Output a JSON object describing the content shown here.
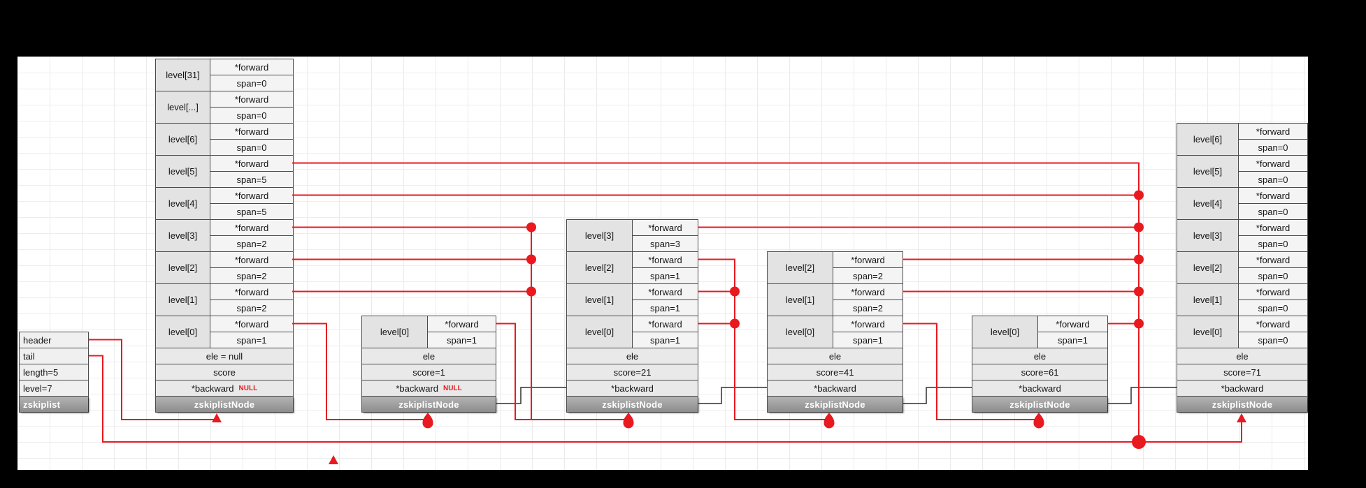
{
  "colors": {
    "accent_red": "#e8191f",
    "backward_line": "#2f2f2f",
    "title_bar_gray": "#9a9a9a",
    "cell_gray": "#e3e3e3"
  },
  "zskiplist_struct": {
    "title": "zskiplist",
    "fields": [
      "header",
      "tail",
      "length=5",
      "level=7"
    ]
  },
  "nodes": [
    {
      "name": "header-node",
      "levels": [
        {
          "label": "level[31]",
          "forward": "*forward",
          "span": "span=0"
        },
        {
          "label": "level[...]",
          "forward": "*forward",
          "span": "span=0"
        },
        {
          "label": "level[6]",
          "forward": "*forward",
          "span": "span=0"
        },
        {
          "label": "level[5]",
          "forward": "*forward",
          "span": "span=5"
        },
        {
          "label": "level[4]",
          "forward": "*forward",
          "span": "span=5"
        },
        {
          "label": "level[3]",
          "forward": "*forward",
          "span": "span=2"
        },
        {
          "label": "level[2]",
          "forward": "*forward",
          "span": "span=2"
        },
        {
          "label": "level[1]",
          "forward": "*forward",
          "span": "span=2"
        },
        {
          "label": "level[0]",
          "forward": "*forward",
          "span": "span=1"
        }
      ],
      "ele": "ele = null",
      "score": "score",
      "backward": "*backward",
      "backward_null": "NULL",
      "title": "zskiplistNode"
    },
    {
      "name": "node-score-1",
      "levels": [
        {
          "label": "level[0]",
          "forward": "*forward",
          "span": "span=1"
        }
      ],
      "ele": "ele",
      "score": "score=1",
      "backward": "*backward",
      "backward_null": "NULL",
      "title": "zskiplistNode"
    },
    {
      "name": "node-score-21",
      "levels": [
        {
          "label": "level[3]",
          "forward": "*forward",
          "span": "span=3"
        },
        {
          "label": "level[2]",
          "forward": "*forward",
          "span": "span=1"
        },
        {
          "label": "level[1]",
          "forward": "*forward",
          "span": "span=1"
        },
        {
          "label": "level[0]",
          "forward": "*forward",
          "span": "span=1"
        }
      ],
      "ele": "ele",
      "score": "score=21",
      "backward": "*backward",
      "title": "zskiplistNode"
    },
    {
      "name": "node-score-41",
      "levels": [
        {
          "label": "level[2]",
          "forward": "*forward",
          "span": "span=2"
        },
        {
          "label": "level[1]",
          "forward": "*forward",
          "span": "span=2"
        },
        {
          "label": "level[0]",
          "forward": "*forward",
          "span": "span=1"
        }
      ],
      "ele": "ele",
      "score": "score=41",
      "backward": "*backward",
      "title": "zskiplistNode"
    },
    {
      "name": "node-score-61",
      "levels": [
        {
          "label": "level[0]",
          "forward": "*forward",
          "span": "span=1"
        }
      ],
      "ele": "ele",
      "score": "score=61",
      "backward": "*backward",
      "title": "zskiplistNode"
    },
    {
      "name": "node-score-71",
      "levels": [
        {
          "label": "level[6]",
          "forward": "*forward",
          "span": "span=0"
        },
        {
          "label": "level[5]",
          "forward": "*forward",
          "span": "span=0"
        },
        {
          "label": "level[4]",
          "forward": "*forward",
          "span": "span=0"
        },
        {
          "label": "level[3]",
          "forward": "*forward",
          "span": "span=0"
        },
        {
          "label": "level[2]",
          "forward": "*forward",
          "span": "span=0"
        },
        {
          "label": "level[1]",
          "forward": "*forward",
          "span": "span=0"
        },
        {
          "label": "level[0]",
          "forward": "*forward",
          "span": "span=0"
        }
      ],
      "ele": "ele",
      "score": "score=71",
      "backward": "*backward",
      "title": "zskiplistNode"
    }
  ]
}
